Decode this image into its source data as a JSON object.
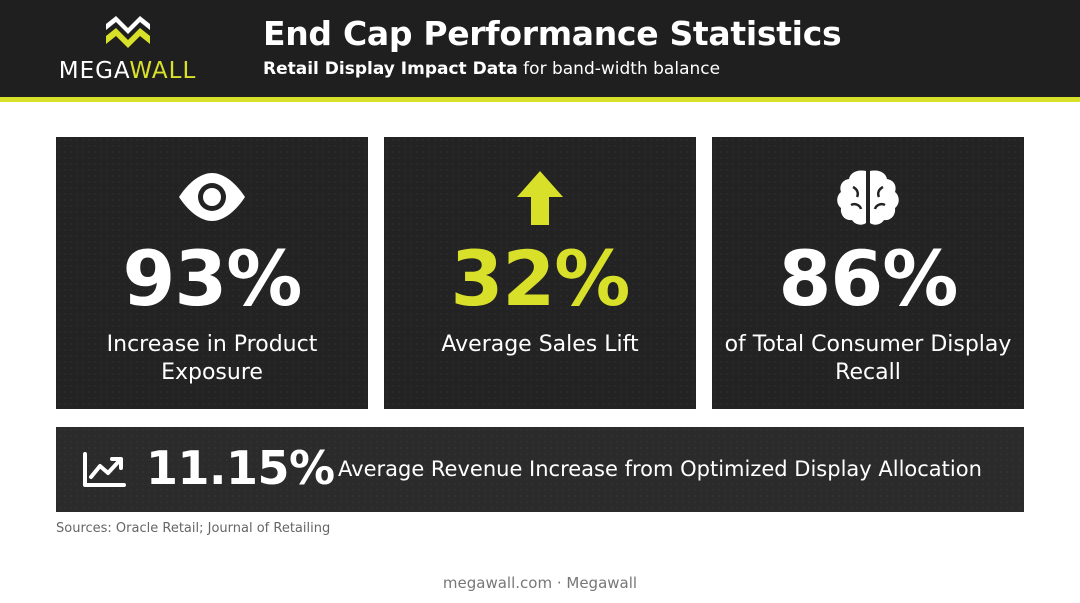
{
  "brand": {
    "logo_text_part1": "MEGA",
    "logo_text_part2": "WALL",
    "logo_icon": "megawall-m-logo-icon",
    "accent_color": "#d9e02a",
    "dark_color": "#1f1f1f"
  },
  "header": {
    "title": "End Cap Performance Statistics",
    "subtitle_bold": "Retail Display Impact Data",
    "subtitle_rest": " for band-width balance"
  },
  "stats": [
    {
      "icon": "eye-icon",
      "value": "93%",
      "label": "Increase in Product Exposure"
    },
    {
      "icon": "arrow-up-icon",
      "value": "32%",
      "label": "Average Sales Lift"
    },
    {
      "icon": "brain-icon",
      "value": "86%",
      "label": "of Total Consumer Display Recall"
    }
  ],
  "banner": {
    "icon": "trending-up-chart-icon",
    "value": "11.15%",
    "text": "Average Revenue Increase from Optimized Display Allocation"
  },
  "sources": "Sources: Oracle Retail; Journal of Retailing",
  "footer": "megawall.com · Megawall"
}
